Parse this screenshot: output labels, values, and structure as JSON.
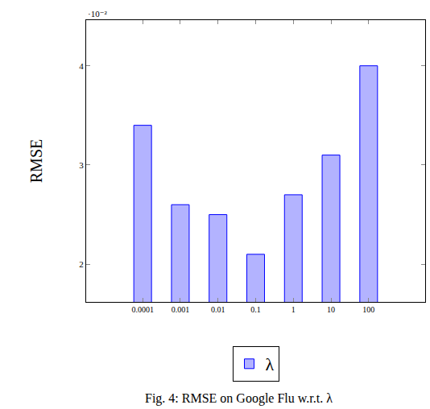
{
  "chart_data": {
    "type": "bar",
    "title": "Fig. 4: RMSE on Google Flu w.r.t. λ",
    "y_label": "RMSE",
    "categories": [
      "0.0001",
      "0.001",
      "0.01",
      "0.1",
      "1",
      "10",
      "100"
    ],
    "series": [
      {
        "name": "λ",
        "color": "#b3b3ff",
        "values": [
          0.034,
          0.026,
          0.025,
          0.021,
          0.027,
          0.031,
          0.04
        ]
      }
    ],
    "ylim": [
      0.0162,
      0.0446
    ],
    "yticks": [
      {
        "value": 0.02,
        "label": "2"
      },
      {
        "value": 0.03,
        "label": "3"
      },
      {
        "value": 0.04,
        "label": "4"
      }
    ],
    "annotations": [
      "·10⁻²"
    ],
    "legend": "bottom",
    "grid": false
  }
}
